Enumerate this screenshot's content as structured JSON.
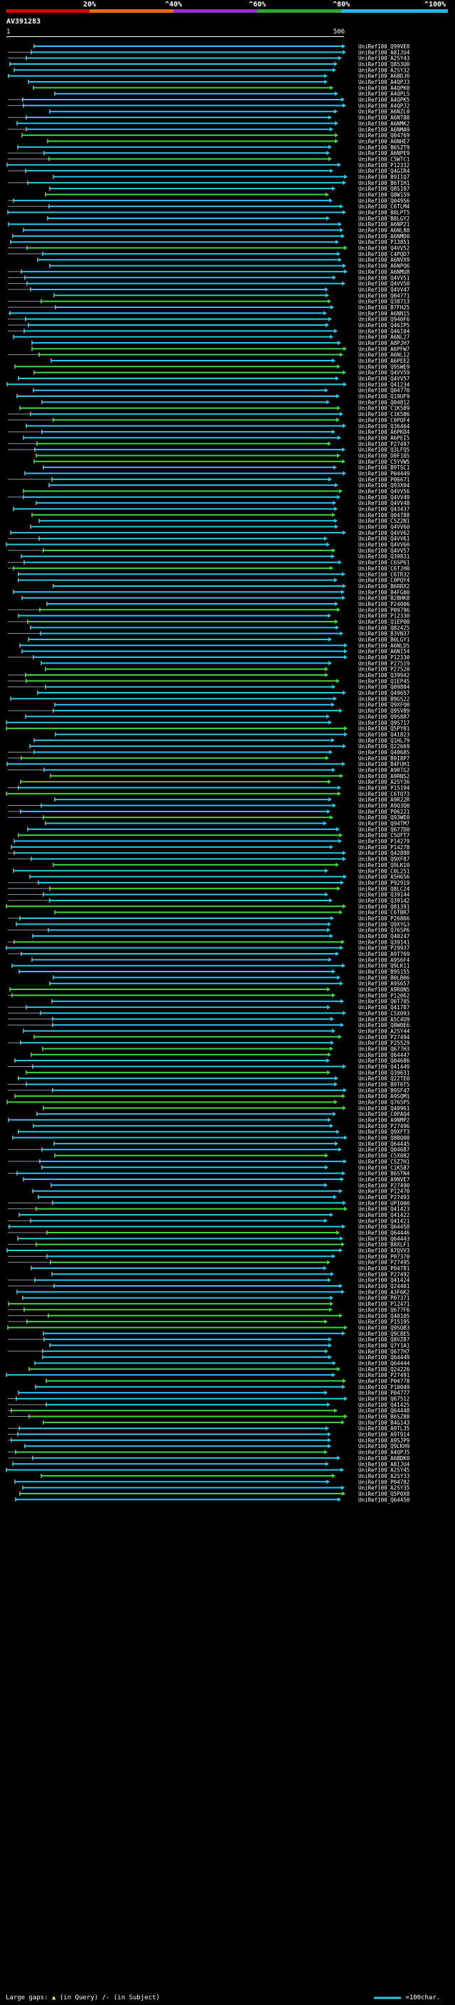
{
  "scale": {
    "labels": [
      "20%",
      "^40%",
      "^60%",
      "^80%",
      "^100%"
    ],
    "colors": [
      "#d80000",
      "#e86a00",
      "#9a2fc8",
      "#2fa62f",
      "#25b8e8"
    ]
  },
  "query": {
    "name": "AV391283",
    "start": "1",
    "end": "506"
  },
  "legend": {
    "gap_prefix": "Large gaps:",
    "gap_query": "(in Query)",
    "gap_subject": "(in Subject)",
    "length_label": "=100char."
  },
  "colors": {
    "green": "#3fd63f",
    "cyan": "#29c7e8",
    "grey": "#8899a6",
    "white": "#ffffff",
    "red": "#cc1111"
  },
  "hits": [
    "UniRef100_Q99VE0",
    "UniRef100_A8IJU4",
    "UniRef100_A2SY43",
    "UniRef100_Q853U0",
    "UniRef100_A2SY32",
    "UniRef100_A6BDJ0",
    "UniRef100_A4QPJ3",
    "UniRef100_A4QPK0",
    "UniRef100_A4QPL5",
    "UniRef100_A4QPK5",
    "UniRef100_A4QPJ2",
    "UniRef100_A6NZL0",
    "UniRef100_A6NT88",
    "UniRef100_A6NMK2",
    "UniRef100_A6NMA9",
    "UniRef100_Q04769",
    "UniRef100_A6NHE7",
    "UniRef100_B6SZT9",
    "UniRef100_A6NPE9",
    "UniRef100_C5WTC1",
    "UniRef100_P12332",
    "UniRef100_Q4GIR4",
    "UniRef100_B9IIQ7",
    "UniRef100_B6TIH1",
    "UniRef100_Q8S197",
    "UniRef100_Q8W159",
    "UniRef100_Q04956",
    "UniRef100_C6TLM4",
    "UniRef100_B8LPT5",
    "UniRef100_B8LGY2",
    "UniRef100_A6NP21",
    "UniRef100_A6NL88",
    "UniRef100_A6NMD0",
    "UniRef100_P13851",
    "UniRef100_Q4VV52",
    "UniRef100_C4PQD7",
    "UniRef100_A6NVX9",
    "UniRef100_A6NPQ6",
    "UniRef100_A6NMU8",
    "UniRef100_Q4VV51",
    "UniRef100_Q4VV50",
    "UniRef100_Q4VV47",
    "UniRef100_Q04771",
    "UniRef100_Q38713",
    "UniRef100_B7FH25",
    "UniRef100_A6NN15",
    "UniRef100_Q940F6",
    "UniRef100_Q46IP5",
    "UniRef100_Q46I04",
    "UniRef100_A6NL27",
    "UniRef100_A8PJH7",
    "UniRef100_A6PFW7",
    "UniRef100_A6NL12",
    "UniRef100_A6PEE2",
    "UniRef100_Q9SWE9",
    "UniRef100_Q4VV59",
    "UniRef100_Q4VV57",
    "UniRef100_Q41234",
    "UniRef100_Q04770",
    "UniRef100_Q19UF9",
    "UniRef100_Q04812",
    "UniRef100_C1K589",
    "UniRef100_C1K586",
    "UniRef100_C0PQF4",
    "UniRef100_Q36464",
    "UniRef100_A6PKD4",
    "UniRef100_A6PEI5",
    "UniRef100_P27497",
    "UniRef100_Q3LFQ5",
    "UniRef100_D0F105",
    "UniRef100_C5YVW5",
    "UniRef100_B9TSC1",
    "UniRef100_P04449",
    "UniRef100_P06671",
    "UniRef100_Q93X04",
    "UniRef100_Q4VV56",
    "UniRef100_Q4VV49",
    "UniRef100_Q4VV48",
    "UniRef100_Q43437",
    "UniRef100_Q04788",
    "UniRef100_C5Z2N1",
    "UniRef100_Q4VV60",
    "UniRef100_Q4VV62",
    "UniRef100_Q4VV61",
    "UniRef100_Q4VV60",
    "UniRef100_Q4VV57",
    "UniRef100_Q39831",
    "UniRef100_C6SP61",
    "UniRef100_C6TJH0",
    "UniRef100_C6TR32",
    "UniRef100_C0PQY4",
    "UniRef100_B6RRX2",
    "UniRef100_B4FG80",
    "UniRef100_B2BHK8",
    "UniRef100_P24006",
    "UniRef100_P09796",
    "UniRef100_P12330",
    "UniRef100_Q1EP00",
    "UniRef100_Q82425",
    "UniRef100_B3VN37",
    "UniRef100_B0LGY1",
    "UniRef100_A6NLD5",
    "UniRef100_A6NI54",
    "UniRef100_P12330",
    "UniRef100_P27519",
    "UniRef100_P27520",
    "UniRef100_Q39942",
    "UniRef100_Q1EP45",
    "UniRef100_Q09884",
    "UniRef100_Q49657",
    "UniRef100_B9GS22",
    "UniRef100_Q9XFQ0",
    "UniRef100_Q9SV89",
    "UniRef100_Q9S887",
    "UniRef100_Q9S717",
    "UniRef100_Q5PY01",
    "UniRef100_Q41823",
    "UniRef100_Q1HL79",
    "UniRef100_Q22669",
    "UniRef100_Q48685",
    "UniRef100_B9I8P7",
    "UniRef100_B4FUH1",
    "UniRef100_A9RTG2",
    "UniRef100_A9RNS2",
    "UniRef100_A2SY36",
    "UniRef100_P15194",
    "UniRef100_C6TQ73",
    "UniRef100_A9R22R",
    "UniRef100_A9Q3Q0",
    "UniRef100_P06221",
    "UniRef100_Q93WE0",
    "UniRef100_Q94TM7",
    "UniRef100_Q677D0",
    "UniRef100_C5UFT7",
    "UniRef100_P14279",
    "UniRef100_P14278",
    "UniRef100_Q42898",
    "UniRef100_Q9XF87",
    "UniRef100_Q9LK10",
    "UniRef100_C0L251",
    "UniRef100_A5H656",
    "UniRef100_P92919",
    "UniRef100_Q8LC24",
    "UniRef100_Q39144",
    "UniRef100_Q39142",
    "UniRef100_Q81391",
    "UniRef100_C6TBR7",
    "UniRef100_P26866",
    "UniRef100_Q9XYG3",
    "UniRef100_Q765P6",
    "UniRef100_Q40247",
    "UniRef100_Q39141",
    "UniRef100_P29937",
    "UniRef100_A9T769",
    "UniRef100_A9S6F4",
    "UniRef100_Q9LK11",
    "UniRef100_B9S155",
    "UniRef100_B0LB06",
    "UniRef100_A9S657",
    "UniRef100_A9R0N5",
    "UniRef100_P12062",
    "UniRef100_Q6T705",
    "UniRef100_Q41787",
    "UniRef100_C5X093",
    "UniRef100_A5C4U9",
    "UniRef100_Q8W0E6",
    "UniRef100_A2SY44",
    "UniRef100_P27494",
    "UniRef100_P25529",
    "UniRef100_Q677H3",
    "UniRef100_Q64447",
    "UniRef100_Q04686",
    "UniRef100_Q41449",
    "UniRef100_Q39631",
    "UniRef100_Q22TE0",
    "UniRef100_B9T6T5",
    "UniRef100_B9SF47",
    "UniRef100_A9SQM1",
    "UniRef100_Q765P5",
    "UniRef100_Q40961",
    "UniRef100_C0PAQ4",
    "UniRef100_A9NMP2",
    "UniRef100_P27496",
    "UniRef100_Q9XFT3",
    "UniRef100_Q8BQ08",
    "UniRef100_Q64445",
    "UniRef100_Q04687",
    "UniRef100_C5X082",
    "UniRef100_C5Z7H1",
    "UniRef100_C1K587",
    "UniRef100_B6STN4",
    "UniRef100_A9NVE7",
    "UniRef100_P27490",
    "UniRef100_P12470",
    "UniRef100_P27493",
    "UniRef100_UPI000",
    "UniRef100_Q41423",
    "UniRef100_Q41422",
    "UniRef100_Q41421",
    "UniRef100_Q64458",
    "UniRef100_Q64446",
    "UniRef100_Q64443",
    "UniRef100_B8XLF1",
    "UniRef100_A7QVV3",
    "UniRef100_P07370",
    "UniRef100_P27495",
    "UniRef100_P04781",
    "UniRef100_P27492",
    "UniRef100_Q41424",
    "UniRef100_Q24401",
    "UniRef100_A3F6K2",
    "UniRef100_P07371",
    "UniRef100_P12471",
    "UniRef100_Q677F6",
    "UniRef100_Q40105",
    "UniRef100_P15195",
    "UniRef100_Q9SQB3",
    "UniRef100_Q9C8E5",
    "UniRef100_Q8VZ87",
    "UniRef100_Q7Y1A1",
    "UniRef100_Q677H7",
    "UniRef100_Q64449",
    "UniRef100_Q64444",
    "UniRef100_Q24226",
    "UniRef100_P27491",
    "UniRef100_P04778",
    "UniRef100_P10049",
    "UniRef100_P04777",
    "UniRef100_Q67512",
    "UniRef100_Q41425",
    "UniRef100_Q64448",
    "UniRef100_B6SZ88",
    "UniRef100_B4G143",
    "UniRef100_A9TL35",
    "UniRef100_A9T914",
    "UniRef100_A9SJP9",
    "UniRef100_Q9LKH9",
    "UniRef100_A4QPJ5",
    "UniRef100_A6BDK0",
    "UniRef100_A8IJU4",
    "UniRef100_A2SY45",
    "UniRef100_A2SY33",
    "UniRef100_P04782",
    "UniRef100_A2SY35",
    "UniRef100_Q5P0X8",
    "UniRef100_Q64450"
  ]
}
